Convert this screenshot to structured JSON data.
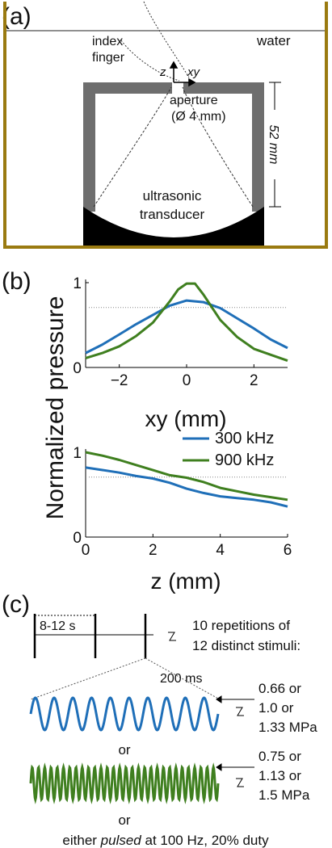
{
  "panel_a": {
    "label": "(a)",
    "water": "water",
    "finger_line1": "index",
    "finger_line2": "finger",
    "axis_z": "z",
    "axis_xy": "xy",
    "aperture_line1": "aperture",
    "aperture_line2": "(Ø 4 mm)",
    "dimension": "52 mm",
    "transducer_line1": "ultrasonic",
    "transducer_line2": "transducer"
  },
  "panel_b": {
    "label": "(b)",
    "ylabel": "Normalized pressure",
    "xlabel_top": "xy (mm)",
    "xlabel_bottom": "z (mm)"
  },
  "panel_c": {
    "label": "(c)",
    "interval": "8-12 s",
    "reps_line1": "10 repetitions of",
    "reps_line2": "12 distinct stimuli:",
    "duration": "200 ms",
    "p300_line1": "0.66 or",
    "p300_line2": "1.0 or",
    "p300_line3": "1.33 MPa",
    "or1": "or",
    "p900_line1": "0.75 or",
    "p900_line2": "1.13 or",
    "p900_line3": "1.5 MPa",
    "or2": "or",
    "pulsed_pre": "either ",
    "pulsed_word": "pulsed",
    "pulsed_post": " at 100 Hz, 20% duty"
  },
  "colors": {
    "blue": "#1f6fb8",
    "green": "#3f7f1f",
    "frame": "#9a7a10",
    "gray": "#6e6e6e"
  },
  "chart_data": [
    {
      "type": "line",
      "xlabel": "xy (mm)",
      "ylabel": "Normalized pressure",
      "xlim": [
        -3,
        3
      ],
      "ylim": [
        0,
        1
      ],
      "xticks": [
        -2,
        0,
        2
      ],
      "yticks": [
        0,
        1
      ],
      "reference_line": 0.707,
      "series": [
        {
          "name": "300 kHz",
          "color": "#1f6fb8",
          "x": [
            -3,
            -2.5,
            -2,
            -1.5,
            -1,
            -0.5,
            0,
            0.5,
            1,
            1.5,
            2,
            2.5,
            3
          ],
          "values": [
            0.17,
            0.27,
            0.39,
            0.51,
            0.62,
            0.73,
            0.79,
            0.77,
            0.7,
            0.58,
            0.46,
            0.33,
            0.23
          ]
        },
        {
          "name": "900 kHz",
          "color": "#3f7f1f",
          "x": [
            -3,
            -2.5,
            -2,
            -1.5,
            -1,
            -0.5,
            -0.25,
            0,
            0.25,
            0.5,
            1,
            1.5,
            2,
            2.5,
            3
          ],
          "values": [
            0.11,
            0.17,
            0.25,
            0.37,
            0.53,
            0.78,
            0.92,
            0.99,
            0.99,
            0.86,
            0.56,
            0.36,
            0.22,
            0.15,
            0.08
          ]
        }
      ]
    },
    {
      "type": "line",
      "xlabel": "z (mm)",
      "ylabel": "Normalized pressure",
      "xlim": [
        0,
        6
      ],
      "ylim": [
        0,
        1
      ],
      "xticks": [
        0,
        2,
        4,
        6
      ],
      "yticks": [
        0,
        1
      ],
      "reference_line": 0.707,
      "legend": "top-right",
      "series": [
        {
          "name": "300 kHz",
          "color": "#1f6fb8",
          "x": [
            0,
            0.5,
            1,
            1.5,
            2,
            2.5,
            3,
            3.5,
            4,
            4.5,
            5,
            5.5,
            6
          ],
          "values": [
            0.82,
            0.79,
            0.76,
            0.72,
            0.69,
            0.64,
            0.57,
            0.52,
            0.48,
            0.46,
            0.44,
            0.41,
            0.36
          ]
        },
        {
          "name": "900 kHz",
          "color": "#3f7f1f",
          "x": [
            0,
            0.5,
            1,
            1.5,
            2,
            2.5,
            3,
            3.5,
            4,
            4.5,
            5,
            5.5,
            6
          ],
          "values": [
            1.0,
            0.96,
            0.91,
            0.85,
            0.79,
            0.73,
            0.7,
            0.65,
            0.58,
            0.54,
            0.5,
            0.47,
            0.44
          ]
        }
      ]
    }
  ]
}
